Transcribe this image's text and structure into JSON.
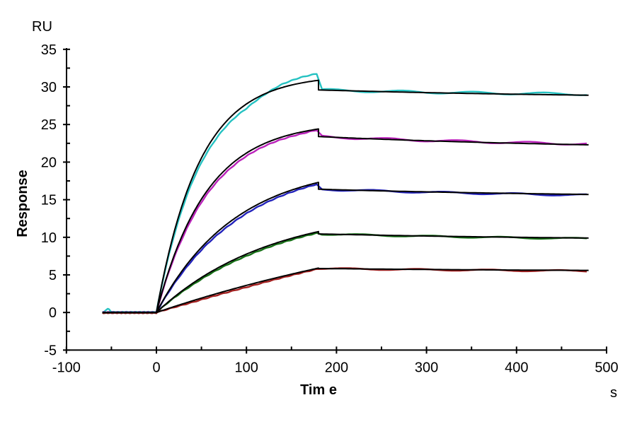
{
  "chart_data": {
    "type": "line",
    "title": "",
    "xlabel": "Tim e",
    "x_unit": "s",
    "ylabel": "Response",
    "y_unit": "RU",
    "xlim": [
      -100,
      500
    ],
    "ylim": [
      -5,
      35
    ],
    "x_tick_values": [
      -100,
      0,
      100,
      200,
      300,
      400,
      500
    ],
    "x_tick_labels": [
      "-100",
      "0",
      "100",
      "200",
      "300",
      "400",
      "500"
    ],
    "x_minor_step": 50,
    "y_tick_values": [
      -5,
      0,
      5,
      10,
      15,
      20,
      25,
      30,
      35
    ],
    "y_tick_labels": [
      "-5",
      "0",
      "5",
      "10",
      "15",
      "20",
      "25",
      "30",
      "35"
    ],
    "y_minor_step": 2.5,
    "grid": false,
    "legend_position": "none",
    "axis_color": "#000000",
    "fit_color": "#000000",
    "description": "SPR sensorgram: five concentration traces (colored) with overlaid black kinetic fit curves; baseline -60 to 0 s, association 0 to 180 s, dissociation 180 to 480 s",
    "baseline_start_s": -60,
    "injection_start_s": 0,
    "injection_end_s": 180,
    "end_s": 480,
    "series": [
      {
        "name": "trace-1-cyan",
        "color": "#26c2c2",
        "assoc": {
          "rmax": 31.6,
          "kobs": 0.021
        },
        "fit_peak": 30.9,
        "diss": {
          "start": 29.6,
          "end": 28.9,
          "shape": 0.003
        },
        "data_peak": 31.8,
        "dev": [
          [
            0,
            0
          ],
          [
            20,
            -0.45
          ],
          [
            60,
            -0.65
          ],
          [
            100,
            -0.6
          ],
          [
            120,
            -0.1
          ],
          [
            140,
            0.45
          ],
          [
            160,
            0.75
          ],
          [
            178,
            0.9
          ]
        ],
        "wobble": {
          "amp": 0.16,
          "phase": 0.4,
          "end_bias": 0.15
        },
        "baseline_offset": 0.07,
        "blip": {
          "t": -54,
          "amp": 0.45,
          "sigma": 2.5
        },
        "readings_RU": {
          "t0": 0,
          "t60": 22.6,
          "t120": 29.1,
          "t180_peak": 30.9,
          "post_drop": 29.6,
          "t300": 29.2,
          "t480": 28.9
        }
      },
      {
        "name": "trace-2-magenta",
        "color": "#bb22bb",
        "assoc": {
          "rmax": 25.4,
          "kobs": 0.018
        },
        "fit_peak": 24.4,
        "diss": {
          "start": 23.4,
          "end": 22.3,
          "shape": 0.003
        },
        "data_peak": 24.3,
        "dev": [
          [
            0,
            0
          ],
          [
            30,
            -0.4
          ],
          [
            80,
            -0.45
          ],
          [
            120,
            -0.35
          ],
          [
            160,
            -0.25
          ],
          [
            178,
            -0.1
          ]
        ],
        "wobble": {
          "amp": 0.15,
          "phase": 1.7,
          "end_bias": 0.12
        },
        "baseline_offset": 0.03,
        "blip": null,
        "readings_RU": {
          "t0": 0,
          "t60": 16.8,
          "t120": 22.5,
          "t180_peak": 24.4,
          "post_drop": 23.4,
          "t300": 22.8,
          "t480": 22.3
        }
      },
      {
        "name": "trace-3-blue",
        "color": "#2222bb",
        "assoc": {
          "rmax": 19.8,
          "kobs": 0.0115
        },
        "fit_peak": 17.3,
        "diss": {
          "start": 16.4,
          "end": 15.7,
          "shape": 0.003
        },
        "data_peak": 17.1,
        "dev": [
          [
            0,
            0
          ],
          [
            30,
            -0.3
          ],
          [
            80,
            -0.4
          ],
          [
            130,
            -0.3
          ],
          [
            178,
            -0.2
          ]
        ],
        "wobble": {
          "amp": 0.12,
          "phase": 2.9,
          "end_bias": -0.1
        },
        "baseline_offset": 0.0,
        "blip": null,
        "readings_RU": {
          "t0": 0,
          "t60": 9.9,
          "t120": 14.8,
          "t180_peak": 17.3,
          "post_drop": 16.4,
          "t300": 16.1,
          "t480": 15.7
        }
      },
      {
        "name": "trace-4-green",
        "color": "#167016",
        "assoc": {
          "rmax": 14.1,
          "kobs": 0.008
        },
        "fit_peak": 10.8,
        "diss": {
          "start": 10.45,
          "end": 9.9,
          "shape": 0.003
        },
        "data_peak": 10.6,
        "dev": [
          [
            0,
            0
          ],
          [
            40,
            -0.2
          ],
          [
            100,
            -0.25
          ],
          [
            178,
            -0.15
          ]
        ],
        "wobble": {
          "amp": 0.1,
          "phase": 4.1,
          "end_bias": -0.08
        },
        "baseline_offset": -0.04,
        "blip": null,
        "readings_RU": {
          "t0": 0,
          "t60": 5.4,
          "t120": 8.7,
          "t180_peak": 10.8,
          "post_drop": 10.45,
          "t300": 10.2,
          "t480": 9.9
        }
      },
      {
        "name": "trace-5-red",
        "color": "#a32020",
        "assoc": {
          "rmax": 16.3,
          "kobs": 0.0025
        },
        "fit_peak": 5.9,
        "diss": {
          "start": 5.85,
          "end": 5.6,
          "shape": 0.003
        },
        "data_peak": 5.8,
        "dev": [
          [
            0,
            0
          ],
          [
            40,
            -0.2
          ],
          [
            100,
            -0.25
          ],
          [
            178,
            -0.1
          ]
        ],
        "wobble": {
          "amp": 0.1,
          "phase": 5.3,
          "end_bias": -0.08
        },
        "baseline_offset": -0.07,
        "blip": null,
        "readings_RU": {
          "t0": 0,
          "t60": 2.3,
          "t120": 4.2,
          "t180_peak": 5.9,
          "post_drop": 5.85,
          "t300": 5.75,
          "t480": 5.6
        }
      }
    ]
  }
}
